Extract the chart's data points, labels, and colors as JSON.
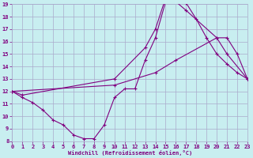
{
  "bg_color": "#c8eef0",
  "grid_color": "#aaaacc",
  "line_color": "#800080",
  "marker_color": "#800080",
  "xlabel": "Windchill (Refroidissement éolien,°C)",
  "xlabel_color": "#800080",
  "tick_color": "#800080",
  "xlim": [
    0,
    23
  ],
  "ylim": [
    8,
    19
  ],
  "yticks": [
    8,
    9,
    10,
    11,
    12,
    13,
    14,
    15,
    16,
    17,
    18,
    19
  ],
  "xticks": [
    0,
    1,
    2,
    3,
    4,
    5,
    6,
    7,
    8,
    9,
    10,
    11,
    12,
    13,
    14,
    15,
    16,
    17,
    18,
    19,
    20,
    21,
    22,
    23
  ],
  "series": [
    {
      "x": [
        0,
        1,
        2,
        3,
        4,
        5,
        6,
        7,
        8,
        9,
        10,
        11,
        12,
        13,
        14,
        15,
        16,
        17,
        18,
        19,
        20,
        21,
        22,
        23
      ],
      "y": [
        12.0,
        11.5,
        11.1,
        10.5,
        9.7,
        9.3,
        8.5,
        8.2,
        8.2,
        9.3,
        11.5,
        12.2,
        12.2,
        14.5,
        16.3,
        19.2,
        19.5,
        19.1,
        17.8,
        16.3,
        15.0,
        14.2,
        13.5,
        13.0
      ]
    },
    {
      "x": [
        0,
        1,
        10,
        13,
        14,
        15,
        16,
        17,
        20,
        21,
        23
      ],
      "y": [
        12.0,
        11.7,
        13.0,
        15.5,
        17.0,
        19.5,
        19.2,
        18.5,
        16.3,
        15.0,
        13.0
      ]
    },
    {
      "x": [
        0,
        10,
        14,
        16,
        20,
        21,
        22,
        23
      ],
      "y": [
        12.0,
        12.5,
        13.5,
        14.5,
        16.3,
        16.3,
        15.0,
        13.0
      ]
    }
  ]
}
